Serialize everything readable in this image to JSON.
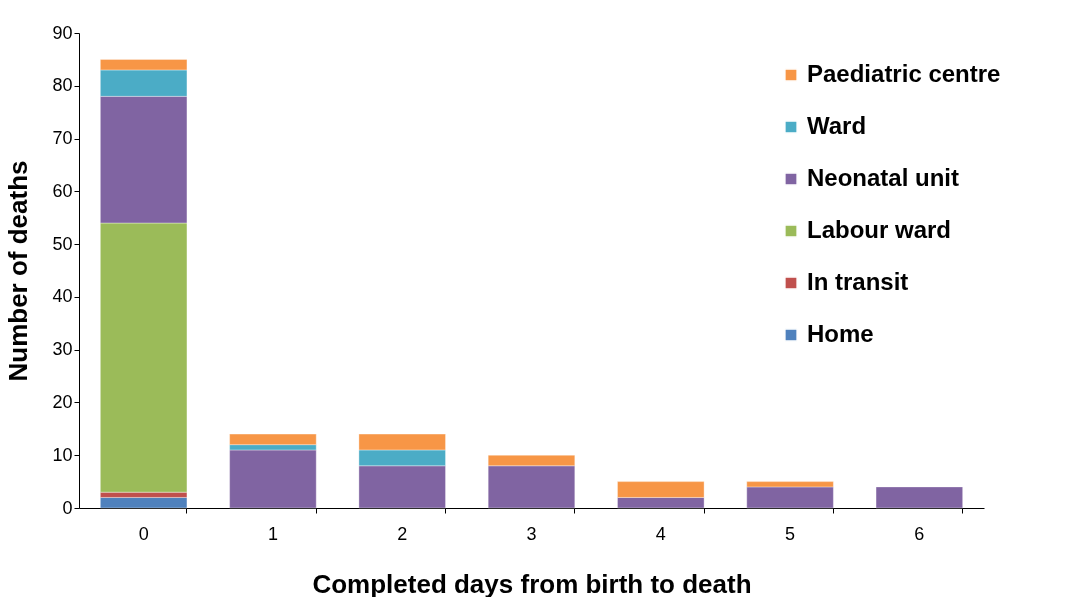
{
  "chart_data": {
    "type": "bar",
    "stacked": true,
    "xlabel": "Completed days from birth to death",
    "ylabel": "Number of deaths",
    "categories": [
      "0",
      "1",
      "2",
      "3",
      "4",
      "5",
      "6"
    ],
    "series": [
      {
        "name": "Home",
        "color": "#4f81bd",
        "values": [
          2,
          0,
          0,
          0,
          0,
          0,
          0
        ]
      },
      {
        "name": "In transit",
        "color": "#c0504d",
        "values": [
          1,
          0,
          0,
          0,
          0,
          0,
          0
        ]
      },
      {
        "name": "Labour ward",
        "color": "#9bbb59",
        "values": [
          51,
          0,
          0,
          0,
          0,
          0,
          0
        ]
      },
      {
        "name": "Neonatal unit",
        "color": "#8064a2",
        "values": [
          24,
          11,
          8,
          8,
          2,
          4,
          4
        ]
      },
      {
        "name": "Ward",
        "color": "#4bacc6",
        "values": [
          5,
          1,
          3,
          0,
          0,
          0,
          0
        ]
      },
      {
        "name": "Paediatric centre",
        "color": "#f79646",
        "values": [
          2,
          2,
          3,
          2,
          3,
          1,
          0
        ]
      }
    ],
    "ylim": [
      0,
      90
    ],
    "yticks": [
      0,
      10,
      20,
      30,
      40,
      50,
      60,
      70,
      80,
      90
    ],
    "grid": false,
    "legend": "top right"
  }
}
